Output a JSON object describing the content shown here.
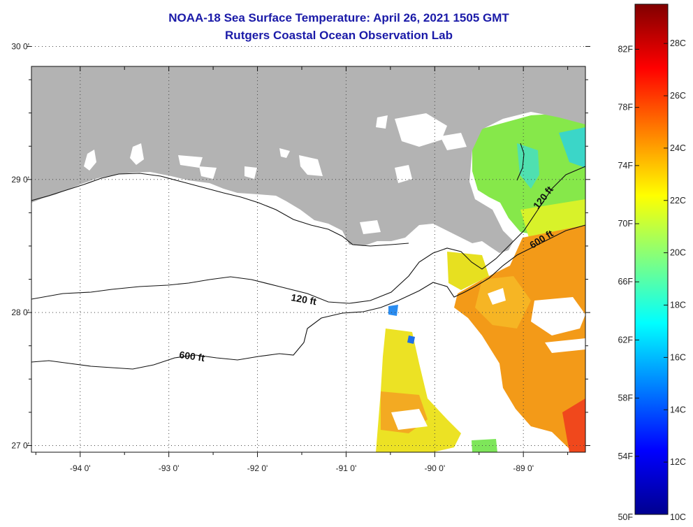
{
  "title": "NOAA-18 Sea Surface Temperature:  April 26, 2021 1505 GMT",
  "subtitle": "Rutgers Coastal Ocean Observation Lab",
  "map": {
    "lon_range": [
      -94.55,
      -88.3
    ],
    "lat_range": [
      26.95,
      29.85
    ],
    "lon_ticks": [
      {
        "value": -94,
        "label": "-94 0'"
      },
      {
        "value": -93,
        "label": "-93 0'"
      },
      {
        "value": -92,
        "label": "-92 0'"
      },
      {
        "value": -91,
        "label": "-91 0'"
      },
      {
        "value": -90,
        "label": "-90 0'"
      },
      {
        "value": -89,
        "label": "-89 0'"
      }
    ],
    "lat_ticks": [
      {
        "value": 27,
        "label": "27 0'"
      },
      {
        "value": 28,
        "label": "28 0'"
      },
      {
        "value": 29,
        "label": "29 0'"
      },
      {
        "value": 30,
        "label": "30 0'"
      }
    ],
    "land_color": "#b3b3b3",
    "contours": [
      {
        "label": "120 ft"
      },
      {
        "label": "600 ft"
      }
    ],
    "contour_labels": [
      {
        "text": "120 ft"
      },
      {
        "text": "600 ft"
      },
      {
        "text": "120 ft"
      },
      {
        "text": "600 ft"
      }
    ]
  },
  "colorbar": {
    "min_c": 10,
    "max_c": 29.5,
    "fahrenheit_labels": [
      {
        "value": 82,
        "label": "82F"
      },
      {
        "value": 78,
        "label": "78F"
      },
      {
        "value": 74,
        "label": "74F"
      },
      {
        "value": 70,
        "label": "70F"
      },
      {
        "value": 66,
        "label": "66F"
      },
      {
        "value": 62,
        "label": "62F"
      },
      {
        "value": 58,
        "label": "58F"
      },
      {
        "value": 54,
        "label": "54F"
      },
      {
        "value": 50,
        "label": "50F"
      }
    ],
    "celsius_labels": [
      {
        "value": 28,
        "label": "28C"
      },
      {
        "value": 26,
        "label": "26C"
      },
      {
        "value": 24,
        "label": "24C"
      },
      {
        "value": 22,
        "label": "22C"
      },
      {
        "value": 20,
        "label": "20C"
      },
      {
        "value": 18,
        "label": "18C"
      },
      {
        "value": 16,
        "label": "16C"
      },
      {
        "value": 14,
        "label": "14C"
      },
      {
        "value": 12,
        "label": "12C"
      },
      {
        "value": 10,
        "label": "10C"
      }
    ],
    "colors": [
      "#00008f",
      "#0000ff",
      "#0080ff",
      "#00ffff",
      "#80ff80",
      "#ffff00",
      "#ff8000",
      "#ff0000",
      "#800000"
    ]
  }
}
